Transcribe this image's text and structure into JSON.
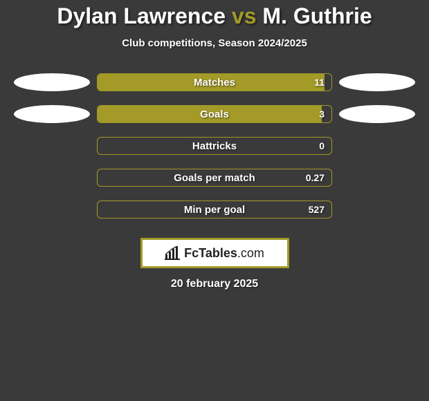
{
  "title": {
    "player1": "Dylan Lawrence",
    "vs": "vs",
    "player2": "M. Guthrie",
    "accent_color": "#a39a28",
    "main_color": "#ffffff",
    "fontsize": 32
  },
  "subtitle": "Club competitions, Season 2024/2025",
  "background_color": "#3a3a3a",
  "border_color": "#a39a28",
  "bar_fill_color": "#a39a28",
  "ellipse_color": "#ffffff",
  "bars": {
    "track_width": 340,
    "track_height": 26,
    "items": [
      {
        "label": "Matches",
        "value": "11",
        "fill_pct": 97,
        "left_ellipse": true,
        "right_ellipse": true
      },
      {
        "label": "Goals",
        "value": "3",
        "fill_pct": 96,
        "left_ellipse": true,
        "right_ellipse": true
      },
      {
        "label": "Hattricks",
        "value": "0",
        "fill_pct": 0,
        "left_ellipse": false,
        "right_ellipse": false
      },
      {
        "label": "Goals per match",
        "value": "0.27",
        "fill_pct": 0,
        "left_ellipse": false,
        "right_ellipse": false
      },
      {
        "label": "Min per goal",
        "value": "527",
        "fill_pct": 0,
        "left_ellipse": false,
        "right_ellipse": false
      }
    ]
  },
  "badge": {
    "text_prefix": "Fc",
    "text_main": "Tables",
    "text_suffix": ".com",
    "border_color": "#a39a28",
    "bg_color": "#ffffff",
    "text_color": "#222222",
    "icon_name": "bar-chart-icon"
  },
  "date": "20 february 2025"
}
